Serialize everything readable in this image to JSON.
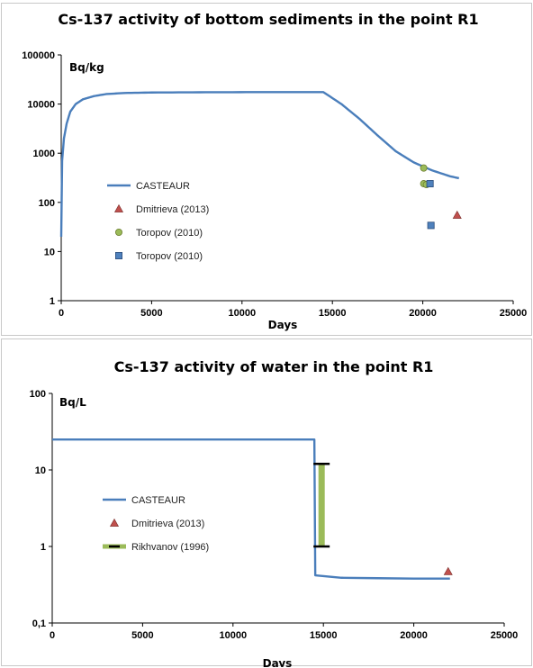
{
  "chart_data": [
    {
      "type": "line",
      "title": "Cs-137 activity of bottom sediments in the point R1",
      "xlabel": "Days",
      "ylabel": "Bq/kg",
      "yscale": "log",
      "xlim": [
        0,
        25000
      ],
      "ylim": [
        1,
        100000
      ],
      "x_ticks": [
        "0",
        "5000",
        "10000",
        "15000",
        "20000",
        "25000"
      ],
      "y_ticks": [
        "1",
        "10",
        "100",
        "1000",
        "10000",
        "100000"
      ],
      "grid": false,
      "legend_position": "left",
      "series": [
        {
          "name": "CASTEAUR",
          "kind": "line",
          "color": "#4a7ebb",
          "x": [
            0,
            50,
            150,
            300,
            500,
            800,
            1200,
            1800,
            2500,
            3500,
            5000,
            8000,
            11000,
            14500,
            15500,
            16500,
            17500,
            18500,
            19500,
            20500,
            21500,
            22000
          ],
          "y": [
            20,
            700,
            2000,
            4000,
            7000,
            10000,
            12500,
            14500,
            16000,
            16800,
            17200,
            17400,
            17500,
            17500,
            10000,
            5000,
            2300,
            1100,
            650,
            450,
            340,
            310
          ]
        },
        {
          "name": "Dmitrieva (2013)",
          "kind": "scatter",
          "marker": "triangle",
          "color": "#c0504d",
          "x": [
            21900
          ],
          "y": [
            55
          ]
        },
        {
          "name": "Toropov (2010)",
          "kind": "scatter",
          "marker": "circle",
          "color": "#9bbb59",
          "x": [
            20050,
            20050,
            20200
          ],
          "y": [
            500,
            240,
            230
          ]
        },
        {
          "name": "Toropov (2010)",
          "kind": "scatter",
          "marker": "square",
          "color": "#4f81bd",
          "x": [
            20400,
            20450
          ],
          "y": [
            240,
            34
          ]
        }
      ]
    },
    {
      "type": "line",
      "title": "Cs-137 activity of water in the point R1",
      "xlabel": "Days",
      "ylabel": "Bq/L",
      "yscale": "log",
      "xlim": [
        0,
        25000
      ],
      "ylim": [
        0.1,
        100
      ],
      "x_ticks": [
        "0",
        "5000",
        "10000",
        "15000",
        "20000",
        "25000"
      ],
      "y_ticks": [
        "0,1",
        "1",
        "10",
        "100"
      ],
      "grid": false,
      "legend_position": "left",
      "series": [
        {
          "name": "CASTEAUR",
          "kind": "line",
          "color": "#4a7ebb",
          "x": [
            0,
            14500,
            14550,
            16000,
            18000,
            20000,
            22000
          ],
          "y": [
            25,
            25,
            0.42,
            0.39,
            0.385,
            0.38,
            0.38
          ]
        },
        {
          "name": "Dmitrieva (2013)",
          "kind": "scatter",
          "marker": "triangle",
          "color": "#c0504d",
          "x": [
            21900
          ],
          "y": [
            0.47
          ]
        },
        {
          "name": "Rikhvanov (1996)",
          "kind": "range",
          "color": "#9bbb59",
          "x": [
            14900
          ],
          "low": [
            1
          ],
          "high": [
            12
          ]
        }
      ]
    }
  ]
}
